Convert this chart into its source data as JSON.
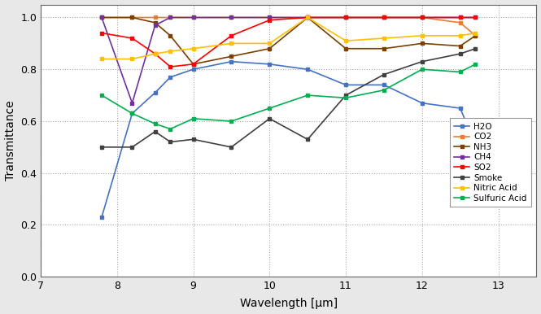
{
  "title": "",
  "xlabel": "Wavelength [μm]",
  "ylabel": "Transmittance",
  "xlim": [
    7,
    13.5
  ],
  "ylim": [
    0,
    1.05
  ],
  "xticks": [
    7,
    8,
    9,
    10,
    11,
    12,
    13
  ],
  "yticks": [
    0,
    0.2,
    0.4,
    0.6,
    0.8,
    1.0
  ],
  "series": [
    {
      "label": "H2O",
      "color": "#4472C4",
      "marker": "s",
      "x": [
        7.8,
        8.2,
        8.5,
        8.7,
        9.0,
        9.5,
        10.0,
        10.5,
        11.0,
        11.5,
        12.0,
        12.5,
        12.7
      ],
      "y": [
        0.23,
        0.63,
        0.71,
        0.77,
        0.8,
        0.83,
        0.82,
        0.8,
        0.74,
        0.74,
        0.67,
        0.65,
        0.51
      ]
    },
    {
      "label": "CO2",
      "color": "#ED7D31",
      "marker": "s",
      "x": [
        7.8,
        8.2,
        8.5,
        8.7,
        9.0,
        9.5,
        10.0,
        10.5,
        11.0,
        11.5,
        12.0,
        12.5,
        12.7
      ],
      "y": [
        1.0,
        1.0,
        1.0,
        1.0,
        1.0,
        1.0,
        1.0,
        1.0,
        1.0,
        1.0,
        1.0,
        0.98,
        0.93
      ]
    },
    {
      "label": "NH3",
      "color": "#7B3F00",
      "marker": "s",
      "x": [
        7.8,
        8.2,
        8.5,
        8.7,
        9.0,
        9.5,
        10.0,
        10.5,
        11.0,
        11.5,
        12.0,
        12.5,
        12.7
      ],
      "y": [
        1.0,
        1.0,
        0.98,
        0.93,
        0.82,
        0.85,
        0.88,
        1.0,
        0.88,
        0.88,
        0.9,
        0.89,
        0.93
      ]
    },
    {
      "label": "CH4",
      "color": "#7030A0",
      "marker": "s",
      "x": [
        7.8,
        8.2,
        8.5,
        8.7,
        9.0,
        9.5,
        10.0,
        10.5,
        11.0,
        11.5,
        12.0,
        12.5,
        12.7
      ],
      "y": [
        1.0,
        0.67,
        0.97,
        1.0,
        1.0,
        1.0,
        1.0,
        1.0,
        1.0,
        1.0,
        1.0,
        1.0,
        1.0
      ]
    },
    {
      "label": "SO2",
      "color": "#FF0000",
      "marker": "s",
      "x": [
        7.8,
        8.2,
        8.5,
        8.7,
        9.0,
        9.5,
        10.0,
        10.5,
        11.0,
        11.5,
        12.0,
        12.5,
        12.7
      ],
      "y": [
        0.94,
        0.92,
        0.86,
        0.81,
        0.82,
        0.93,
        0.99,
        1.0,
        1.0,
        1.0,
        1.0,
        1.0,
        1.0
      ]
    },
    {
      "label": "Smoke",
      "color": "#404040",
      "marker": "s",
      "x": [
        7.8,
        8.2,
        8.5,
        8.7,
        9.0,
        9.5,
        10.0,
        10.5,
        11.0,
        11.5,
        12.0,
        12.5,
        12.7
      ],
      "y": [
        0.5,
        0.5,
        0.56,
        0.52,
        0.53,
        0.5,
        0.61,
        0.53,
        0.7,
        0.78,
        0.83,
        0.86,
        0.88
      ]
    },
    {
      "label": "Nitric Acid",
      "color": "#FFC000",
      "marker": "s",
      "x": [
        7.8,
        8.2,
        8.5,
        8.7,
        9.0,
        9.5,
        10.0,
        10.5,
        11.0,
        11.5,
        12.0,
        12.5,
        12.7
      ],
      "y": [
        0.84,
        0.84,
        0.86,
        0.87,
        0.88,
        0.9,
        0.9,
        1.0,
        0.91,
        0.92,
        0.93,
        0.93,
        0.94
      ]
    },
    {
      "label": "Sulfuric Acid",
      "color": "#00B050",
      "marker": "s",
      "x": [
        7.8,
        8.2,
        8.5,
        8.7,
        9.0,
        9.5,
        10.0,
        10.5,
        11.0,
        11.5,
        12.0,
        12.5,
        12.7
      ],
      "y": [
        0.7,
        0.63,
        0.59,
        0.57,
        0.61,
        0.6,
        0.65,
        0.7,
        0.69,
        0.72,
        0.8,
        0.79,
        0.82
      ]
    }
  ],
  "fig_facecolor": "#E8E8E8",
  "ax_facecolor": "#FFFFFF",
  "grid_color": "#AAAAAA",
  "spine_color": "#666666"
}
